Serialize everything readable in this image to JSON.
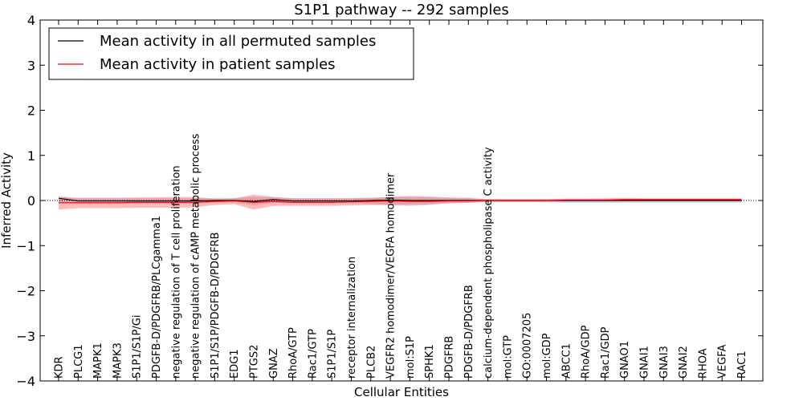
{
  "chart_data": {
    "type": "line",
    "title": "S1P1 pathway -- 292 samples",
    "xlabel": "Cellular Entities",
    "ylabel": "Inferred Activity",
    "ylim": [
      -4,
      4
    ],
    "yticks": [
      -4,
      -3,
      -2,
      -1,
      0,
      1,
      2,
      3,
      4
    ],
    "ytick_labels": [
      "−4",
      "−3",
      "−2",
      "−1",
      "0",
      "1",
      "2",
      "3",
      "4"
    ],
    "legend_position": "top-left",
    "categories": [
      "KDR",
      "PLCG1",
      "MAPK1",
      "MAPK3",
      "S1P1/S1P/Gi",
      "PDGFB-D/PDGFRB/PLCgamma1",
      "negative regulation of T cell proliferation",
      "negative regulation of cAMP metabolic process",
      "S1P1/S1P/PDGFB-D/PDGFRB",
      "EDG1",
      "PTGS2",
      "GNAZ",
      "RhoA/GTP",
      "Rac1/GTP",
      "S1P1/S1P",
      "receptor internalization",
      "PLCB2",
      "VEGFR2 homodimer/VEGFA homodimer",
      "mol:S1P",
      "SPHK1",
      "PDGFRB",
      "PDGFB-D/PDGFRB",
      "calcium-dependent phospholipase C activity",
      "mol:GTP",
      "GO:0007205",
      "mol:GDP",
      "ABCC1",
      "RhoA/GDP",
      "Rac1/GDP",
      "GNAO1",
      "GNAI1",
      "GNAI3",
      "GNAI2",
      "RHOA",
      "VEGFA",
      "RAC1"
    ],
    "series": [
      {
        "name": "Mean activity in all permuted samples",
        "color": "#000000",
        "values": [
          0.05,
          -0.01,
          -0.01,
          -0.01,
          -0.01,
          -0.01,
          -0.01,
          -0.01,
          0.0,
          0.0,
          -0.02,
          0.02,
          -0.01,
          -0.01,
          -0.01,
          -0.01,
          0.0,
          0.01,
          0.0,
          0.0,
          0.0,
          0.0,
          0.0,
          0.0,
          0.0,
          0.0,
          0.0,
          0.0,
          0.0,
          0.0,
          0.0,
          0.0,
          0.0,
          0.0,
          0.0,
          0.0
        ],
        "band_color": "#9999cc",
        "band_upper": [
          0.1,
          0.05,
          0.05,
          0.05,
          0.05,
          0.05,
          0.05,
          0.05,
          0.05,
          0.05,
          0.08,
          0.07,
          0.05,
          0.05,
          0.05,
          0.05,
          0.06,
          0.08,
          0.08,
          0.07,
          0.06,
          0.05,
          0.03,
          0.03,
          0.03,
          0.03,
          0.04,
          0.04,
          0.04,
          0.04,
          0.04,
          0.04,
          0.04,
          0.04,
          0.04,
          0.04
        ],
        "band_lower": [
          -0.05,
          -0.07,
          -0.07,
          -0.07,
          -0.07,
          -0.07,
          -0.07,
          -0.07,
          -0.05,
          -0.05,
          -0.1,
          -0.05,
          -0.06,
          -0.06,
          -0.06,
          -0.06,
          -0.08,
          -0.1,
          -0.12,
          -0.1,
          -0.06,
          -0.05,
          -0.03,
          -0.03,
          -0.03,
          -0.04,
          -0.05,
          -0.05,
          -0.05,
          -0.05,
          -0.05,
          -0.05,
          -0.05,
          -0.05,
          -0.05,
          -0.05
        ]
      },
      {
        "name": "Mean activity in patient samples",
        "color": "#ff0000",
        "values": [
          -0.05,
          -0.05,
          -0.05,
          -0.05,
          -0.04,
          -0.04,
          -0.04,
          -0.04,
          -0.02,
          -0.01,
          -0.04,
          -0.02,
          -0.04,
          -0.04,
          -0.04,
          -0.03,
          -0.02,
          -0.01,
          -0.02,
          -0.02,
          -0.01,
          -0.01,
          0.0,
          0.0,
          0.0,
          0.0,
          0.01,
          0.01,
          0.01,
          0.02,
          0.02,
          0.02,
          0.02,
          0.02,
          0.02,
          0.02
        ],
        "band_color": "#ff6666",
        "band_upper": [
          0.07,
          0.06,
          0.06,
          0.06,
          0.07,
          0.07,
          0.08,
          0.08,
          0.04,
          0.05,
          0.13,
          0.08,
          0.05,
          0.05,
          0.05,
          0.05,
          0.06,
          0.08,
          0.1,
          0.09,
          0.07,
          0.06,
          0.03,
          0.03,
          0.03,
          0.03,
          0.04,
          0.04,
          0.05,
          0.06,
          0.05,
          0.05,
          0.05,
          0.05,
          0.05,
          0.05
        ],
        "band_lower": [
          -0.2,
          -0.17,
          -0.17,
          -0.17,
          -0.16,
          -0.16,
          -0.16,
          -0.15,
          -0.1,
          -0.08,
          -0.2,
          -0.12,
          -0.12,
          -0.12,
          -0.12,
          -0.11,
          -0.1,
          -0.1,
          -0.09,
          -0.08,
          -0.06,
          -0.05,
          -0.03,
          -0.03,
          -0.03,
          -0.03,
          -0.02,
          -0.02,
          -0.02,
          -0.01,
          -0.01,
          -0.01,
          -0.01,
          -0.01,
          -0.01,
          -0.01
        ]
      }
    ]
  }
}
